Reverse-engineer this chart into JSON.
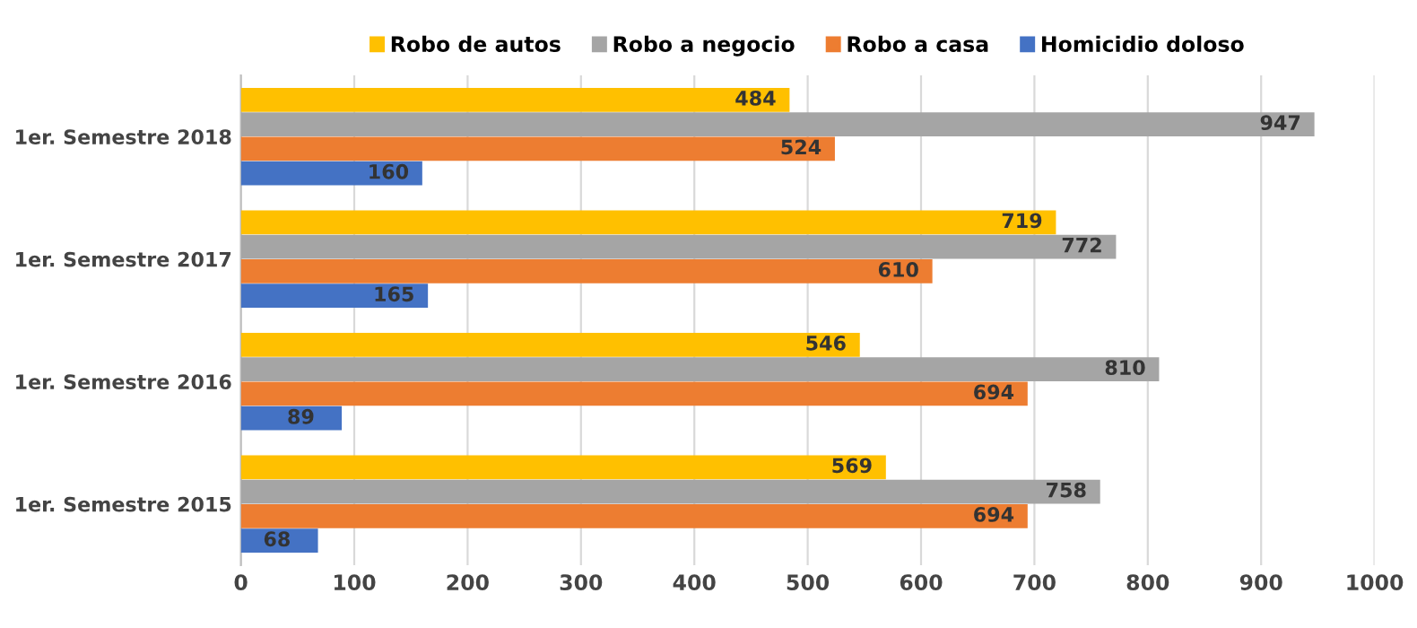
{
  "chart_data": {
    "type": "bar",
    "orientation": "horizontal",
    "categories": [
      "1er. Semestre 2018",
      "1er. Semestre 2017",
      "1er. Semestre 2016",
      "1er. Semestre 2015"
    ],
    "series": [
      {
        "name": "Robo de autos",
        "color": "#ffc000",
        "values": [
          484,
          719,
          546,
          569
        ]
      },
      {
        "name": "Robo a negocio",
        "color": "#a5a5a5",
        "values": [
          947,
          772,
          810,
          758
        ]
      },
      {
        "name": "Robo a casa",
        "color": "#ed7d31",
        "values": [
          524,
          610,
          694,
          694
        ]
      },
      {
        "name": "Homicidio doloso",
        "color": "#4472c4",
        "values": [
          160,
          165,
          89,
          68
        ]
      }
    ],
    "xlim": [
      0,
      1000
    ],
    "xticks": [
      0,
      100,
      200,
      300,
      400,
      500,
      600,
      700,
      800,
      900,
      1000
    ],
    "grid": "x",
    "legend": "top",
    "data_labels": true
  }
}
